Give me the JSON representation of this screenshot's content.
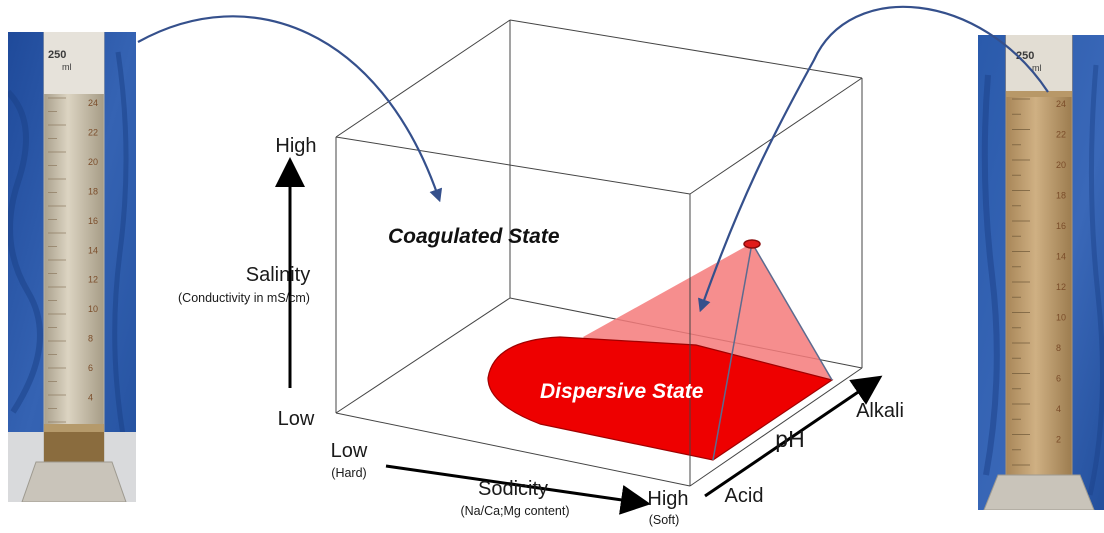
{
  "colors": {
    "coagulated_text": "#111111",
    "dispersive_fill": "#ee0000",
    "cone_fill": "#f57a7a",
    "arrow_blue": "#35508c",
    "photo_background": "#2b56a6",
    "cylinder_liquid_left": "#cfc6b2",
    "cylinder_liquid_right": "#c2a273"
  },
  "icons": {
    "left_photo": "graduated-cylinder-clear-suspension",
    "right_photo": "graduated-cylinder-turbid-suspension"
  },
  "states": {
    "coagulated": "Coagulated State",
    "dispersive": "Dispersive State"
  },
  "salinity_axis": {
    "title": "Salinity",
    "subtitle": "(Conductivity in mS/cm)",
    "high": "High",
    "low": "Low"
  },
  "sodicity_axis": {
    "title": "Sodicity",
    "subtitle": "(Na/Ca;Mg content)",
    "low": "Low",
    "low_note": "(Hard)",
    "high": "High",
    "high_note": "(Soft)"
  },
  "ph_axis": {
    "title": "pH",
    "low": "Acid",
    "high": "Alkali"
  },
  "cylinder_left": {
    "volume_label": "250",
    "unit_label": "ml",
    "scale_marks": [
      "24",
      "22",
      "20",
      "18",
      "16",
      "14",
      "12",
      "10",
      "8",
      "6",
      "4"
    ]
  },
  "cylinder_right": {
    "volume_label": "250",
    "unit_label": "ml",
    "scale_marks": [
      "24",
      "22",
      "20",
      "18",
      "16",
      "14",
      "12",
      "10",
      "8",
      "6",
      "4",
      "2"
    ]
  }
}
